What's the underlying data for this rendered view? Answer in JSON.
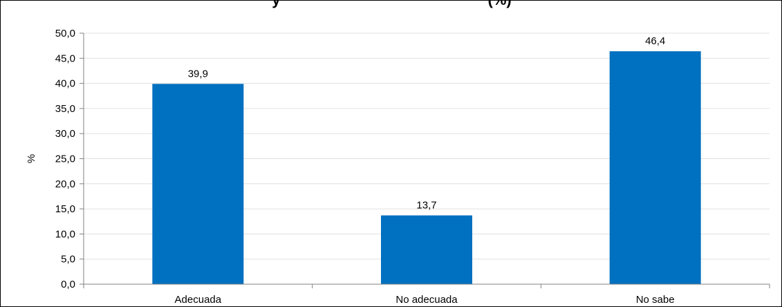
{
  "chart_data": {
    "type": "bar",
    "title": "y",
    "title_suffix": "(%)",
    "xlabel": "",
    "ylabel": "%",
    "categories": [
      "Adecuada",
      "No adecuada",
      "No sabe"
    ],
    "values": [
      39.9,
      13.7,
      46.4
    ],
    "value_labels": [
      "39,9",
      "13,7",
      "46,4"
    ],
    "ylim": [
      0,
      50
    ],
    "yticks": [
      "0,0",
      "5,0",
      "10,0",
      "15,0",
      "20,0",
      "25,0",
      "30,0",
      "35,0",
      "40,0",
      "45,0",
      "50,0"
    ],
    "grid": true,
    "legend": "none",
    "bar_color": "#0070C0",
    "grid_color": "#E0E0E0"
  }
}
